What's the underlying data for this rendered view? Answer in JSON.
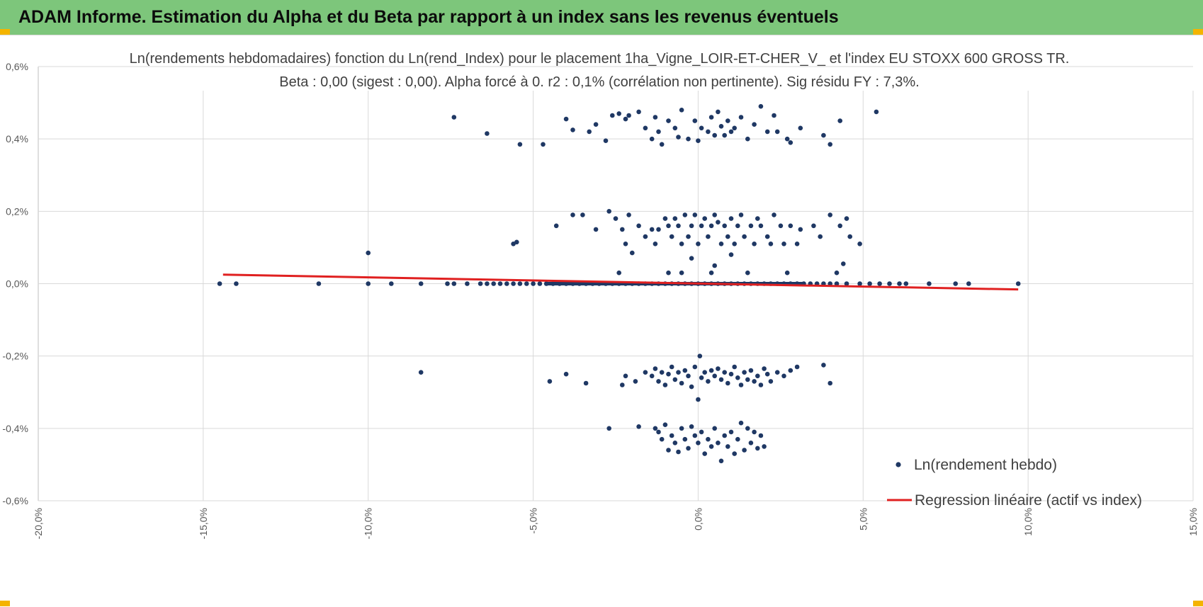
{
  "banner": {
    "title": "ADAM Informe. Estimation du Alpha et du Beta par rapport à un index sans les revenus éventuels",
    "color": "#7dc67b"
  },
  "chart_data": {
    "type": "scatter",
    "title": "Ln(rendements hebdomadaires) fonction du Ln(rend_Index) pour le placement 1ha_Vigne_LOIR-ET-CHER_V_ et l'index EU STOXX 600 GROSS TR.",
    "subtitle": "Beta : 0,00 (sigest : 0,00).  Alpha forcé à 0. r2 : 0,1% (corrélation non pertinente). Sig résidu FY : 7,3%.",
    "xlabel": "",
    "ylabel": "",
    "xlim": [
      -20,
      15
    ],
    "ylim": [
      -0.6,
      0.6
    ],
    "x_ticks": [
      "-20,0%",
      "-15,0%",
      "-10,0%",
      "-5,0%",
      "0,0%",
      "5,0%",
      "10,0%",
      "15,0%"
    ],
    "y_ticks": [
      "0,6%",
      "0,4%",
      "0,2%",
      "0,0%",
      "-0,2%",
      "-0,4%",
      "-0,6%"
    ],
    "grid": true,
    "legend_position": "right",
    "series": [
      {
        "name": "Ln(rendement hebdo)",
        "kind": "points",
        "color": "#1f3864",
        "points": [
          [
            -14.5,
            0.0
          ],
          [
            -14.0,
            0.0
          ],
          [
            -11.5,
            0.0
          ],
          [
            -10.0,
            0.0
          ],
          [
            -9.3,
            0.0
          ],
          [
            -8.4,
            0.0
          ],
          [
            -7.6,
            0.0
          ],
          [
            -7.4,
            0.0
          ],
          [
            -7.0,
            0.0
          ],
          [
            -6.6,
            0.0
          ],
          [
            -6.4,
            0.0
          ],
          [
            -6.2,
            0.0
          ],
          [
            -6.0,
            0.0
          ],
          [
            -5.8,
            0.0
          ],
          [
            -5.6,
            0.0
          ],
          [
            -5.4,
            0.0
          ],
          [
            -5.2,
            0.0
          ],
          [
            -5.0,
            0.0
          ],
          [
            -4.8,
            0.0
          ],
          [
            -4.6,
            0.0
          ],
          [
            -4.4,
            0.0
          ],
          [
            -4.2,
            0.0
          ],
          [
            -4.0,
            0.0
          ],
          [
            -3.8,
            0.0
          ],
          [
            -3.6,
            0.0
          ],
          [
            -3.4,
            0.0
          ],
          [
            -3.2,
            0.0
          ],
          [
            -3.0,
            0.0
          ],
          [
            -2.8,
            0.0
          ],
          [
            -2.6,
            0.0
          ],
          [
            -2.4,
            0.0
          ],
          [
            -2.2,
            0.0
          ],
          [
            -2.0,
            0.0
          ],
          [
            -1.8,
            0.0
          ],
          [
            -1.6,
            0.0
          ],
          [
            -1.4,
            0.0
          ],
          [
            -1.2,
            0.0
          ],
          [
            -1.0,
            0.0
          ],
          [
            -0.8,
            0.0
          ],
          [
            -0.6,
            0.0
          ],
          [
            -0.4,
            0.0
          ],
          [
            -0.2,
            0.0
          ],
          [
            0.0,
            0.0
          ],
          [
            0.2,
            0.0
          ],
          [
            0.4,
            0.0
          ],
          [
            0.6,
            0.0
          ],
          [
            0.8,
            0.0
          ],
          [
            1.0,
            0.0
          ],
          [
            1.2,
            0.0
          ],
          [
            1.4,
            0.0
          ],
          [
            1.6,
            0.0
          ],
          [
            1.8,
            0.0
          ],
          [
            2.0,
            0.0
          ],
          [
            2.2,
            0.0
          ],
          [
            2.4,
            0.0
          ],
          [
            2.6,
            0.0
          ],
          [
            2.8,
            0.0
          ],
          [
            3.0,
            0.0
          ],
          [
            3.2,
            0.0
          ],
          [
            3.4,
            0.0
          ],
          [
            3.6,
            0.0
          ],
          [
            3.8,
            0.0
          ],
          [
            4.0,
            0.0
          ],
          [
            4.2,
            0.0
          ],
          [
            4.5,
            0.0
          ],
          [
            4.9,
            0.0
          ],
          [
            5.2,
            0.0
          ],
          [
            5.5,
            0.0
          ],
          [
            5.8,
            0.0
          ],
          [
            6.1,
            0.0
          ],
          [
            6.3,
            0.0
          ],
          [
            7.0,
            0.0
          ],
          [
            7.8,
            0.0
          ],
          [
            8.2,
            0.0
          ],
          [
            9.7,
            0.0
          ],
          [
            -10.0,
            0.085
          ],
          [
            -5.5,
            0.115
          ],
          [
            -5.6,
            0.11
          ],
          [
            -4.3,
            0.16
          ],
          [
            -3.8,
            0.19
          ],
          [
            -3.5,
            0.19
          ],
          [
            -3.1,
            0.15
          ],
          [
            -2.7,
            0.2
          ],
          [
            -2.5,
            0.18
          ],
          [
            -2.3,
            0.15
          ],
          [
            -2.2,
            0.11
          ],
          [
            -2.1,
            0.19
          ],
          [
            -2.0,
            0.085
          ],
          [
            -1.8,
            0.16
          ],
          [
            -1.6,
            0.13
          ],
          [
            -1.4,
            0.15
          ],
          [
            -1.3,
            0.11
          ],
          [
            -1.2,
            0.15
          ],
          [
            -1.0,
            0.18
          ],
          [
            -0.9,
            0.16
          ],
          [
            -0.8,
            0.13
          ],
          [
            -0.7,
            0.18
          ],
          [
            -0.6,
            0.16
          ],
          [
            -0.5,
            0.11
          ],
          [
            -0.4,
            0.19
          ],
          [
            -0.3,
            0.13
          ],
          [
            -0.2,
            0.16
          ],
          [
            -0.1,
            0.19
          ],
          [
            0.0,
            0.11
          ],
          [
            0.1,
            0.16
          ],
          [
            0.2,
            0.18
          ],
          [
            0.3,
            0.13
          ],
          [
            0.4,
            0.16
          ],
          [
            0.5,
            0.19
          ],
          [
            0.6,
            0.17
          ],
          [
            0.7,
            0.11
          ],
          [
            0.8,
            0.16
          ],
          [
            0.9,
            0.13
          ],
          [
            1.0,
            0.18
          ],
          [
            1.1,
            0.11
          ],
          [
            1.2,
            0.16
          ],
          [
            1.3,
            0.19
          ],
          [
            1.4,
            0.13
          ],
          [
            1.6,
            0.16
          ],
          [
            1.7,
            0.11
          ],
          [
            1.8,
            0.18
          ],
          [
            1.9,
            0.16
          ],
          [
            2.1,
            0.13
          ],
          [
            2.2,
            0.11
          ],
          [
            2.3,
            0.19
          ],
          [
            2.5,
            0.16
          ],
          [
            2.6,
            0.11
          ],
          [
            2.8,
            0.16
          ],
          [
            3.0,
            0.11
          ],
          [
            3.1,
            0.15
          ],
          [
            3.5,
            0.16
          ],
          [
            3.7,
            0.13
          ],
          [
            4.0,
            0.19
          ],
          [
            4.3,
            0.16
          ],
          [
            4.5,
            0.18
          ],
          [
            4.6,
            0.13
          ],
          [
            4.9,
            0.11
          ],
          [
            -0.2,
            0.07
          ],
          [
            0.5,
            0.05
          ],
          [
            1.0,
            0.08
          ],
          [
            -0.9,
            0.03
          ],
          [
            0.4,
            0.03
          ],
          [
            1.5,
            0.03
          ],
          [
            2.7,
            0.03
          ],
          [
            4.4,
            0.055
          ],
          [
            4.2,
            0.03
          ],
          [
            -2.4,
            0.03
          ],
          [
            -0.5,
            0.03
          ],
          [
            -7.4,
            0.46
          ],
          [
            -6.4,
            0.415
          ],
          [
            -5.4,
            0.385
          ],
          [
            -4.7,
            0.385
          ],
          [
            -4.0,
            0.455
          ],
          [
            -3.8,
            0.425
          ],
          [
            -3.3,
            0.42
          ],
          [
            -3.1,
            0.44
          ],
          [
            -2.8,
            0.395
          ],
          [
            -2.6,
            0.465
          ],
          [
            -2.4,
            0.47
          ],
          [
            -2.2,
            0.455
          ],
          [
            -2.1,
            0.465
          ],
          [
            -1.8,
            0.475
          ],
          [
            -1.6,
            0.43
          ],
          [
            -1.4,
            0.4
          ],
          [
            -1.3,
            0.46
          ],
          [
            -1.2,
            0.42
          ],
          [
            -1.1,
            0.385
          ],
          [
            -0.9,
            0.45
          ],
          [
            -0.7,
            0.43
          ],
          [
            -0.6,
            0.405
          ],
          [
            -0.5,
            0.48
          ],
          [
            -0.3,
            0.4
          ],
          [
            -0.1,
            0.45
          ],
          [
            0.0,
            0.395
          ],
          [
            0.1,
            0.43
          ],
          [
            0.3,
            0.42
          ],
          [
            0.4,
            0.46
          ],
          [
            0.5,
            0.41
          ],
          [
            0.6,
            0.475
          ],
          [
            0.7,
            0.435
          ],
          [
            0.8,
            0.41
          ],
          [
            0.9,
            0.45
          ],
          [
            1.0,
            0.42
          ],
          [
            1.1,
            0.43
          ],
          [
            1.3,
            0.46
          ],
          [
            1.5,
            0.4
          ],
          [
            1.7,
            0.44
          ],
          [
            1.9,
            0.49
          ],
          [
            2.1,
            0.42
          ],
          [
            2.3,
            0.465
          ],
          [
            2.4,
            0.42
          ],
          [
            2.7,
            0.4
          ],
          [
            2.8,
            0.39
          ],
          [
            3.1,
            0.43
          ],
          [
            3.8,
            0.41
          ],
          [
            4.0,
            0.385
          ],
          [
            4.3,
            0.45
          ],
          [
            5.4,
            0.475
          ],
          [
            -8.4,
            -0.245
          ],
          [
            -4.5,
            -0.27
          ],
          [
            -4.0,
            -0.25
          ],
          [
            -3.4,
            -0.275
          ],
          [
            -2.3,
            -0.28
          ],
          [
            -2.2,
            -0.255
          ],
          [
            -1.9,
            -0.27
          ],
          [
            -1.6,
            -0.245
          ],
          [
            -1.4,
            -0.255
          ],
          [
            -1.3,
            -0.235
          ],
          [
            -1.2,
            -0.27
          ],
          [
            -1.1,
            -0.245
          ],
          [
            -1.0,
            -0.28
          ],
          [
            -0.9,
            -0.25
          ],
          [
            -0.8,
            -0.23
          ],
          [
            -0.7,
            -0.265
          ],
          [
            -0.6,
            -0.245
          ],
          [
            -0.5,
            -0.275
          ],
          [
            -0.4,
            -0.24
          ],
          [
            -0.3,
            -0.255
          ],
          [
            -0.2,
            -0.285
          ],
          [
            -0.1,
            -0.23
          ],
          [
            0.0,
            -0.32
          ],
          [
            0.05,
            -0.2
          ],
          [
            0.1,
            -0.26
          ],
          [
            0.2,
            -0.245
          ],
          [
            0.3,
            -0.27
          ],
          [
            0.4,
            -0.24
          ],
          [
            0.5,
            -0.255
          ],
          [
            0.6,
            -0.235
          ],
          [
            0.7,
            -0.265
          ],
          [
            0.8,
            -0.245
          ],
          [
            0.9,
            -0.275
          ],
          [
            1.0,
            -0.25
          ],
          [
            1.1,
            -0.23
          ],
          [
            1.2,
            -0.26
          ],
          [
            1.3,
            -0.28
          ],
          [
            1.4,
            -0.245
          ],
          [
            1.5,
            -0.265
          ],
          [
            1.6,
            -0.24
          ],
          [
            1.7,
            -0.27
          ],
          [
            1.8,
            -0.255
          ],
          [
            1.9,
            -0.28
          ],
          [
            2.0,
            -0.235
          ],
          [
            2.1,
            -0.25
          ],
          [
            2.2,
            -0.27
          ],
          [
            2.4,
            -0.245
          ],
          [
            2.6,
            -0.255
          ],
          [
            2.8,
            -0.24
          ],
          [
            3.0,
            -0.23
          ],
          [
            3.8,
            -0.225
          ],
          [
            4.0,
            -0.275
          ],
          [
            -2.7,
            -0.4
          ],
          [
            -1.8,
            -0.395
          ],
          [
            -1.3,
            -0.4
          ],
          [
            -1.2,
            -0.41
          ],
          [
            -1.1,
            -0.43
          ],
          [
            -1.0,
            -0.39
          ],
          [
            -0.9,
            -0.46
          ],
          [
            -0.8,
            -0.42
          ],
          [
            -0.7,
            -0.44
          ],
          [
            -0.6,
            -0.465
          ],
          [
            -0.5,
            -0.4
          ],
          [
            -0.4,
            -0.43
          ],
          [
            -0.3,
            -0.455
          ],
          [
            -0.2,
            -0.395
          ],
          [
            -0.1,
            -0.42
          ],
          [
            0.0,
            -0.44
          ],
          [
            0.1,
            -0.41
          ],
          [
            0.2,
            -0.47
          ],
          [
            0.3,
            -0.43
          ],
          [
            0.4,
            -0.45
          ],
          [
            0.5,
            -0.4
          ],
          [
            0.6,
            -0.44
          ],
          [
            0.7,
            -0.49
          ],
          [
            0.8,
            -0.42
          ],
          [
            0.9,
            -0.45
          ],
          [
            1.0,
            -0.41
          ],
          [
            1.1,
            -0.47
          ],
          [
            1.2,
            -0.43
          ],
          [
            1.3,
            -0.385
          ],
          [
            1.4,
            -0.46
          ],
          [
            1.5,
            -0.4
          ],
          [
            1.6,
            -0.44
          ],
          [
            1.7,
            -0.41
          ],
          [
            1.8,
            -0.455
          ],
          [
            1.9,
            -0.42
          ],
          [
            2.0,
            -0.45
          ]
        ]
      },
      {
        "name": "Regression linéaire (actif vs index)",
        "kind": "line",
        "color": "#e02020",
        "points": [
          [
            -14.4,
            0.025
          ],
          [
            9.7,
            -0.016
          ]
        ]
      }
    ]
  }
}
